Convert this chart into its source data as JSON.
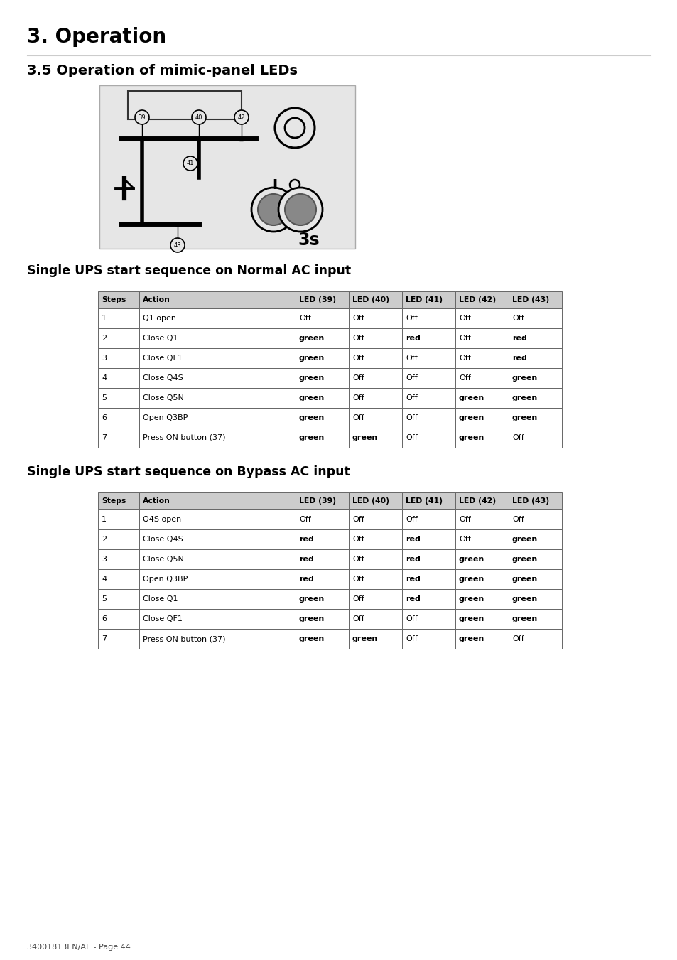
{
  "title_main": "3. Operation",
  "title_sub": "3.5 Operation of mimic-panel LEDs",
  "footer": "34001813EN/AE - Page 44",
  "table1_title": "Single UPS start sequence on Normal AC input",
  "table2_title": "Single UPS start sequence on Bypass AC input",
  "table_headers": [
    "Steps",
    "Action",
    "LED (39)",
    "LED (40)",
    "LED (41)",
    "LED (42)",
    "LED (43)"
  ],
  "table1_rows": [
    [
      "1",
      "Q1 open",
      "Off",
      "Off",
      "Off",
      "Off",
      "Off"
    ],
    [
      "2",
      "Close Q1",
      "green",
      "Off",
      "red",
      "Off",
      "red"
    ],
    [
      "3",
      "Close QF1",
      "green",
      "Off",
      "Off",
      "Off",
      "red"
    ],
    [
      "4",
      "Close Q4S",
      "green",
      "Off",
      "Off",
      "Off",
      "green"
    ],
    [
      "5",
      "Close Q5N",
      "green",
      "Off",
      "Off",
      "green",
      "green"
    ],
    [
      "6",
      "Open Q3BP",
      "green",
      "Off",
      "Off",
      "green",
      "green"
    ],
    [
      "7",
      "Press ON button (37)",
      "green",
      "green",
      "Off",
      "green",
      "Off"
    ]
  ],
  "table2_rows": [
    [
      "1",
      "Q4S open",
      "Off",
      "Off",
      "Off",
      "Off",
      "Off"
    ],
    [
      "2",
      "Close Q4S",
      "red",
      "Off",
      "red",
      "Off",
      "green"
    ],
    [
      "3",
      "Close Q5N",
      "red",
      "Off",
      "red",
      "green",
      "green"
    ],
    [
      "4",
      "Open Q3BP",
      "red",
      "Off",
      "red",
      "green",
      "green"
    ],
    [
      "5",
      "Close Q1",
      "green",
      "Off",
      "red",
      "green",
      "green"
    ],
    [
      "6",
      "Close QF1",
      "green",
      "Off",
      "Off",
      "green",
      "green"
    ],
    [
      "7",
      "Press ON button (37)",
      "green",
      "green",
      "Off",
      "green",
      "Off"
    ]
  ],
  "diagram_bg": "#e6e6e6",
  "header_bg": "#cccccc",
  "page_bg": "#ffffff",
  "border_color": "#888888",
  "text_color": "#000000"
}
